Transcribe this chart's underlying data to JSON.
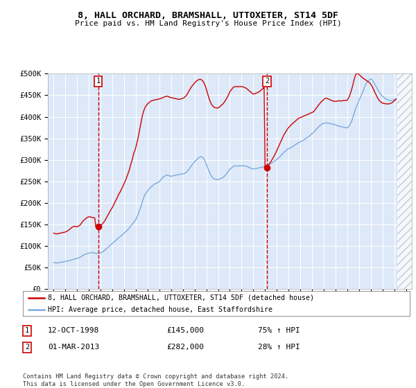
{
  "title": "8, HALL ORCHARD, BRAMSHALL, UTTOXETER, ST14 5DF",
  "subtitle": "Price paid vs. HM Land Registry's House Price Index (HPI)",
  "ylim": [
    0,
    500000
  ],
  "yticks": [
    0,
    50000,
    100000,
    150000,
    200000,
    250000,
    300000,
    350000,
    400000,
    450000,
    500000
  ],
  "ytick_labels": [
    "£0",
    "£50K",
    "£100K",
    "£150K",
    "£200K",
    "£250K",
    "£300K",
    "£350K",
    "£400K",
    "£450K",
    "£500K"
  ],
  "background_color": "#dde8f8",
  "grid_color": "#ffffff",
  "sale1_x": 1998.79,
  "sale1_y": 145000,
  "sale1_label": "1",
  "sale1_date": "12-OCT-1998",
  "sale1_price": "£145,000",
  "sale1_hpi": "75% ↑ HPI",
  "sale2_x": 2013.17,
  "sale2_y": 282000,
  "sale2_label": "2",
  "sale2_date": "01-MAR-2013",
  "sale2_price": "£282,000",
  "sale2_hpi": "28% ↑ HPI",
  "red_line_color": "#cc0000",
  "blue_line_color": "#7aaadd",
  "legend_label_red": "8, HALL ORCHARD, BRAMSHALL, UTTOXETER, ST14 5DF (detached house)",
  "legend_label_blue": "HPI: Average price, detached house, East Staffordshire",
  "footer": "Contains HM Land Registry data © Crown copyright and database right 2024.\nThis data is licensed under the Open Government Licence v3.0.",
  "xlim": [
    1994.5,
    2025.5
  ],
  "xticks": [
    1995,
    1996,
    1997,
    1998,
    1999,
    2000,
    2001,
    2002,
    2003,
    2004,
    2005,
    2006,
    2007,
    2008,
    2009,
    2010,
    2011,
    2012,
    2013,
    2014,
    2015,
    2016,
    2017,
    2018,
    2019,
    2020,
    2021,
    2022,
    2023,
    2024,
    2025
  ],
  "hatch_start": 2024.25,
  "years": [
    1995.0,
    1995.08,
    1995.17,
    1995.25,
    1995.33,
    1995.42,
    1995.5,
    1995.58,
    1995.67,
    1995.75,
    1995.83,
    1995.92,
    1996.0,
    1996.08,
    1996.17,
    1996.25,
    1996.33,
    1996.42,
    1996.5,
    1996.58,
    1996.67,
    1996.75,
    1996.83,
    1996.92,
    1997.0,
    1997.08,
    1997.17,
    1997.25,
    1997.33,
    1997.42,
    1997.5,
    1997.58,
    1997.67,
    1997.75,
    1997.83,
    1997.92,
    1998.0,
    1998.08,
    1998.17,
    1998.25,
    1998.33,
    1998.42,
    1998.5,
    1998.58,
    1998.67,
    1998.75,
    1998.83,
    1998.92,
    1999.0,
    1999.08,
    1999.17,
    1999.25,
    1999.33,
    1999.42,
    1999.5,
    1999.58,
    1999.67,
    1999.75,
    1999.83,
    1999.92,
    2000.0,
    2000.08,
    2000.17,
    2000.25,
    2000.33,
    2000.42,
    2000.5,
    2000.58,
    2000.67,
    2000.75,
    2000.83,
    2000.92,
    2001.0,
    2001.08,
    2001.17,
    2001.25,
    2001.33,
    2001.42,
    2001.5,
    2001.58,
    2001.67,
    2001.75,
    2001.83,
    2001.92,
    2002.0,
    2002.08,
    2002.17,
    2002.25,
    2002.33,
    2002.42,
    2002.5,
    2002.58,
    2002.67,
    2002.75,
    2002.83,
    2002.92,
    2003.0,
    2003.08,
    2003.17,
    2003.25,
    2003.33,
    2003.42,
    2003.5,
    2003.58,
    2003.67,
    2003.75,
    2003.83,
    2003.92,
    2004.0,
    2004.08,
    2004.17,
    2004.25,
    2004.33,
    2004.42,
    2004.5,
    2004.58,
    2004.67,
    2004.75,
    2004.83,
    2004.92,
    2005.0,
    2005.08,
    2005.17,
    2005.25,
    2005.33,
    2005.42,
    2005.5,
    2005.58,
    2005.67,
    2005.75,
    2005.83,
    2005.92,
    2006.0,
    2006.08,
    2006.17,
    2006.25,
    2006.33,
    2006.42,
    2006.5,
    2006.58,
    2006.67,
    2006.75,
    2006.83,
    2006.92,
    2007.0,
    2007.08,
    2007.17,
    2007.25,
    2007.33,
    2007.42,
    2007.5,
    2007.58,
    2007.67,
    2007.75,
    2007.83,
    2007.92,
    2008.0,
    2008.08,
    2008.17,
    2008.25,
    2008.33,
    2008.42,
    2008.5,
    2008.58,
    2008.67,
    2008.75,
    2008.83,
    2008.92,
    2009.0,
    2009.08,
    2009.17,
    2009.25,
    2009.33,
    2009.42,
    2009.5,
    2009.58,
    2009.67,
    2009.75,
    2009.83,
    2009.92,
    2010.0,
    2010.08,
    2010.17,
    2010.25,
    2010.33,
    2010.42,
    2010.5,
    2010.58,
    2010.67,
    2010.75,
    2010.83,
    2010.92,
    2011.0,
    2011.08,
    2011.17,
    2011.25,
    2011.33,
    2011.42,
    2011.5,
    2011.58,
    2011.67,
    2011.75,
    2011.83,
    2011.92,
    2012.0,
    2012.08,
    2012.17,
    2012.25,
    2012.33,
    2012.42,
    2012.5,
    2012.58,
    2012.67,
    2012.75,
    2012.83,
    2012.92,
    2013.0,
    2013.08,
    2013.17,
    2013.25,
    2013.33,
    2013.42,
    2013.5,
    2013.58,
    2013.67,
    2013.75,
    2013.83,
    2013.92,
    2014.0,
    2014.08,
    2014.17,
    2014.25,
    2014.33,
    2014.42,
    2014.5,
    2014.58,
    2014.67,
    2014.75,
    2014.83,
    2014.92,
    2015.0,
    2015.08,
    2015.17,
    2015.25,
    2015.33,
    2015.42,
    2015.5,
    2015.58,
    2015.67,
    2015.75,
    2015.83,
    2015.92,
    2016.0,
    2016.08,
    2016.17,
    2016.25,
    2016.33,
    2016.42,
    2016.5,
    2016.58,
    2016.67,
    2016.75,
    2016.83,
    2016.92,
    2017.0,
    2017.08,
    2017.17,
    2017.25,
    2017.33,
    2017.42,
    2017.5,
    2017.58,
    2017.67,
    2017.75,
    2017.83,
    2017.92,
    2018.0,
    2018.08,
    2018.17,
    2018.25,
    2018.33,
    2018.42,
    2018.5,
    2018.58,
    2018.67,
    2018.75,
    2018.83,
    2018.92,
    2019.0,
    2019.08,
    2019.17,
    2019.25,
    2019.33,
    2019.42,
    2019.5,
    2019.58,
    2019.67,
    2019.75,
    2019.83,
    2019.92,
    2020.0,
    2020.08,
    2020.17,
    2020.25,
    2020.33,
    2020.42,
    2020.5,
    2020.58,
    2020.67,
    2020.75,
    2020.83,
    2020.92,
    2021.0,
    2021.08,
    2021.17,
    2021.25,
    2021.33,
    2021.42,
    2021.5,
    2021.58,
    2021.67,
    2021.75,
    2021.83,
    2021.92,
    2022.0,
    2022.08,
    2022.17,
    2022.25,
    2022.33,
    2022.42,
    2022.5,
    2022.58,
    2022.67,
    2022.75,
    2022.83,
    2022.92,
    2023.0,
    2023.08,
    2023.17,
    2023.25,
    2023.33,
    2023.42,
    2023.5,
    2023.58,
    2023.67,
    2023.75,
    2023.83,
    2023.92,
    2024.0,
    2024.08,
    2024.17
  ],
  "hpi_values": [
    62000,
    61500,
    61000,
    60500,
    60800,
    61200,
    61800,
    62200,
    62500,
    62800,
    63200,
    63500,
    64000,
    64500,
    65000,
    65500,
    66000,
    66500,
    67200,
    68000,
    68800,
    69500,
    70000,
    70500,
    71000,
    72000,
    73000,
    74000,
    75500,
    77000,
    78500,
    79500,
    80500,
    81500,
    82500,
    83000,
    83500,
    83800,
    84000,
    84200,
    84500,
    84800,
    83500,
    83000,
    82800,
    83000,
    83200,
    83500,
    84000,
    85000,
    86500,
    88000,
    90000,
    92000,
    94000,
    96000,
    98000,
    100000,
    102000,
    104000,
    106000,
    108000,
    110000,
    112000,
    114000,
    116500,
    118500,
    120000,
    122000,
    124000,
    126000,
    128000,
    130000,
    132000,
    134000,
    136000,
    138500,
    141000,
    144000,
    147000,
    150000,
    153000,
    156000,
    158000,
    162000,
    167000,
    172000,
    178000,
    184000,
    191000,
    198000,
    206000,
    213000,
    218000,
    222000,
    225000,
    228000,
    231000,
    234000,
    236000,
    238000,
    240000,
    242000,
    244000,
    245000,
    246000,
    247000,
    248000,
    250000,
    252000,
    255000,
    258000,
    260000,
    262000,
    263000,
    264000,
    265000,
    264000,
    263000,
    262000,
    262000,
    262500,
    263000,
    263500,
    264000,
    264500,
    265000,
    265500,
    266000,
    266500,
    267000,
    267000,
    267500,
    268000,
    269000,
    270000,
    272000,
    275000,
    278000,
    281000,
    284000,
    287000,
    290000,
    293000,
    296000,
    298000,
    300000,
    302000,
    304000,
    306000,
    307000,
    307500,
    306000,
    304000,
    301000,
    295000,
    290000,
    284000,
    278000,
    272000,
    267000,
    263000,
    260000,
    258000,
    256000,
    255000,
    255000,
    254000,
    254000,
    255000,
    256000,
    257000,
    258000,
    259000,
    261000,
    263000,
    266000,
    269000,
    272000,
    275000,
    278000,
    280000,
    282000,
    284000,
    285000,
    286000,
    286000,
    286000,
    286000,
    286000,
    286000,
    286000,
    286000,
    286000,
    286000,
    286000,
    286000,
    285000,
    284000,
    283000,
    282000,
    281000,
    280000,
    279000,
    279000,
    279000,
    279500,
    280000,
    280500,
    281000,
    281500,
    282000,
    282500,
    283000,
    283500,
    284000,
    284500,
    285000,
    286000,
    287000,
    288500,
    290000,
    291500,
    293000,
    294500,
    296000,
    297500,
    299000,
    301000,
    303000,
    305000,
    307000,
    309500,
    312000,
    314500,
    317000,
    319000,
    321000,
    323000,
    325000,
    326000,
    327000,
    328000,
    329000,
    330500,
    332000,
    333500,
    335000,
    336500,
    338000,
    339500,
    341000,
    342000,
    343000,
    344000,
    345500,
    347000,
    348500,
    350000,
    351500,
    353000,
    355000,
    357000,
    359000,
    361000,
    363000,
    365000,
    367500,
    370000,
    372500,
    375000,
    377000,
    379000,
    381000,
    383000,
    384000,
    385000,
    385500,
    385800,
    385800,
    385500,
    385000,
    384500,
    384000,
    383500,
    383000,
    382500,
    382000,
    381000,
    380000,
    379000,
    378500,
    378000,
    377500,
    377000,
    376500,
    376000,
    375500,
    375000,
    374500,
    374000,
    376000,
    379000,
    383000,
    387000,
    393000,
    400000,
    408000,
    416000,
    422000,
    427000,
    432000,
    438000,
    443000,
    448000,
    453000,
    458000,
    464000,
    470000,
    476000,
    480000,
    482000,
    484000,
    486000,
    488000,
    487000,
    484000,
    480000,
    476000,
    472000,
    468000,
    464000,
    460000,
    456000,
    453000,
    450000,
    448000,
    446000,
    444000,
    442000,
    441000,
    440000,
    439000,
    438000,
    438000,
    438000,
    438500,
    439000,
    440000,
    441000,
    442000,
    443000,
    444000,
    445000,
    446000,
    447000,
    448000,
    449000,
    450000,
    451000,
    452000,
    453000,
    454000
  ],
  "red_values": [
    130000,
    129000,
    128500,
    128000,
    128500,
    129000,
    129500,
    130000,
    130500,
    131000,
    131500,
    132000,
    132500,
    133500,
    135000,
    136500,
    138000,
    140000,
    142000,
    144000,
    145000,
    145500,
    145500,
    145000,
    144500,
    145500,
    147000,
    149000,
    152000,
    155000,
    158000,
    160000,
    162000,
    164000,
    166000,
    167000,
    168000,
    167500,
    167000,
    166500,
    166000,
    165500,
    165000,
    145000,
    144500,
    145000,
    145500,
    146000,
    147000,
    149500,
    152000,
    155000,
    158000,
    162000,
    166000,
    170000,
    174000,
    178000,
    182000,
    186000,
    190000,
    194000,
    199000,
    204000,
    208000,
    213000,
    218000,
    222000,
    226000,
    231000,
    235000,
    240000,
    245000,
    250000,
    256000,
    262000,
    268000,
    275000,
    283000,
    291000,
    299000,
    308000,
    316000,
    322000,
    330000,
    339000,
    349000,
    360000,
    372000,
    384000,
    396000,
    406000,
    414000,
    420000,
    424000,
    427000,
    430000,
    432000,
    434000,
    436000,
    437000,
    438000,
    438500,
    439000,
    439500,
    440000,
    440500,
    441000,
    441500,
    442000,
    443000,
    444000,
    445000,
    446000,
    447000,
    447500,
    448000,
    447000,
    446000,
    445000,
    444500,
    444000,
    443500,
    443000,
    442500,
    442000,
    441500,
    441000,
    440500,
    441000,
    441500,
    442000,
    443000,
    444000,
    446000,
    448000,
    451000,
    455000,
    459000,
    463000,
    467000,
    470000,
    473000,
    476000,
    479000,
    481000,
    483000,
    485000,
    486000,
    487000,
    487000,
    486000,
    484000,
    481000,
    477000,
    471000,
    464000,
    456000,
    448000,
    441000,
    435000,
    430000,
    427000,
    424000,
    422000,
    421000,
    421000,
    420000,
    421000,
    422000,
    424000,
    426000,
    428000,
    430000,
    433000,
    436000,
    440000,
    444000,
    448000,
    453000,
    458000,
    461000,
    464000,
    467000,
    469000,
    470000,
    470000,
    470000,
    470000,
    470000,
    470000,
    470000,
    470000,
    470000,
    469000,
    468000,
    467000,
    466000,
    464000,
    462000,
    460000,
    458000,
    456000,
    454000,
    453000,
    453000,
    454000,
    455000,
    456000,
    457000,
    458000,
    460000,
    462000,
    464000,
    466000,
    468000,
    282000,
    283000,
    285000,
    287000,
    290000,
    293000,
    296000,
    300000,
    304000,
    308000,
    312000,
    317000,
    322000,
    327000,
    332000,
    337000,
    342000,
    347000,
    352000,
    357000,
    361000,
    365000,
    368000,
    372000,
    375000,
    377000,
    380000,
    382000,
    384000,
    386000,
    388000,
    390000,
    392000,
    394000,
    396000,
    397000,
    398000,
    399000,
    400000,
    401000,
    402000,
    403000,
    404000,
    405000,
    406000,
    407000,
    408000,
    409000,
    410000,
    411000,
    413000,
    416000,
    419000,
    422000,
    425000,
    428000,
    431000,
    434000,
    436000,
    438000,
    440000,
    442000,
    443000,
    443000,
    442000,
    441000,
    440000,
    439000,
    438000,
    437000,
    436000,
    436000,
    436000,
    436000,
    436500,
    437000,
    437000,
    437000,
    437000,
    437000,
    437500,
    438000,
    438000,
    438000,
    439000,
    442000,
    447000,
    453000,
    460000,
    468000,
    477000,
    486000,
    494000,
    499000,
    501000,
    500000,
    498000,
    496000,
    494000,
    492000,
    490000,
    488000,
    487000,
    485000,
    484000,
    482000,
    480000,
    479000,
    476000,
    472000,
    468000,
    463000,
    458000,
    453000,
    448000,
    444000,
    440000,
    437000,
    435000,
    433000,
    432000,
    431000,
    431000,
    430000,
    430000,
    430000,
    430000,
    430000,
    431000,
    432000,
    433000,
    435000,
    437000,
    439000,
    441000,
    443000,
    445000,
    447000,
    449000,
    450000,
    451000,
    452000,
    453000,
    454000,
    455000,
    456000,
    457000
  ]
}
